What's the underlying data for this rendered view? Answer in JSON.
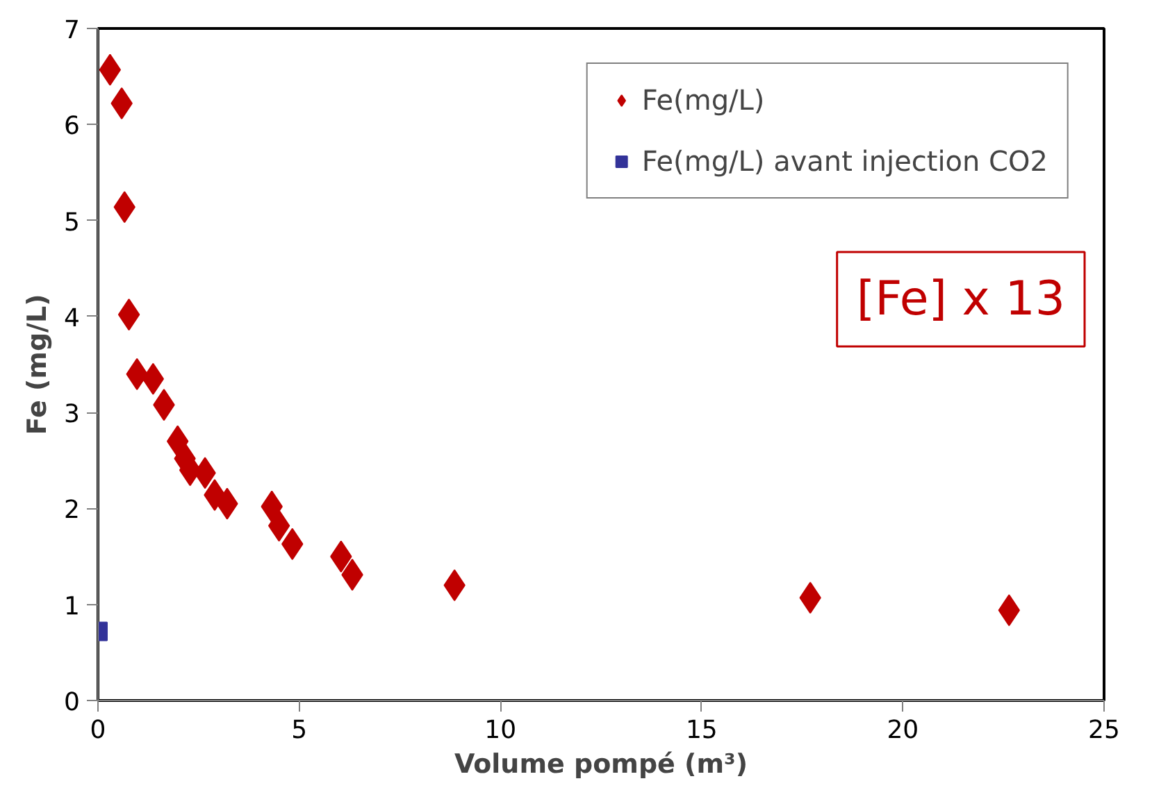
{
  "chart_data": {
    "type": "scatter",
    "xlabel": "Volume pompé (m³)",
    "ylabel": "Fe (mg/L)",
    "xlim": [
      0,
      25
    ],
    "xticks": [
      0,
      5,
      10,
      15,
      20,
      25
    ],
    "ylim": [
      0,
      7
    ],
    "yticks": [
      0,
      1,
      2,
      3,
      4,
      5,
      6,
      7
    ],
    "grid": false,
    "legend": "top right",
    "annotations": [
      "[Fe] x 13"
    ],
    "series": [
      {
        "name": "Fe(mg/L)",
        "color": "#c00000",
        "marker": "diamond",
        "x": [
          0.3,
          0.59,
          0.66,
          0.77,
          0.97,
          1.37,
          1.64,
          1.98,
          2.16,
          2.29,
          2.66,
          2.9,
          3.21,
          4.32,
          4.5,
          4.83,
          6.04,
          6.32,
          8.86,
          17.7,
          22.64
        ],
        "values": [
          6.57,
          6.22,
          5.14,
          4.02,
          3.4,
          3.35,
          3.08,
          2.7,
          2.52,
          2.4,
          2.37,
          2.14,
          2.05,
          2.02,
          1.82,
          1.63,
          1.5,
          1.31,
          1.2,
          1.07,
          0.94
        ]
      },
      {
        "name": "Fe(mg/L) avant injection CO2",
        "color": "#333399",
        "marker": "square",
        "x": [
          0
        ],
        "values": [
          0.72
        ]
      }
    ]
  }
}
